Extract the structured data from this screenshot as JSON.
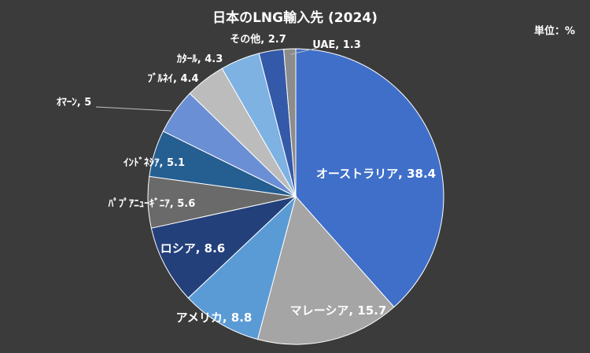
{
  "chart_data": {
    "type": "pie",
    "title": "日本のLNG輸入先 (2024)",
    "unit_label": "単位：%",
    "categories": [
      "オーストラリア",
      "マレーシア",
      "アメリカ",
      "ロシア",
      "ﾊﾟﾌﾟｱﾆｭｰｷﾞﾆｱ",
      "ｲﾝﾄﾞﾈｼｱ",
      "ｵﾏｰﾝ",
      "ﾌﾞﾙﾈｲ",
      "ｶﾀｰﾙ",
      "その他",
      "UAE"
    ],
    "values": [
      38.4,
      15.7,
      8.8,
      8.6,
      5.6,
      5.1,
      5,
      4.4,
      4.3,
      2.7,
      1.3
    ],
    "label_separator": ", ",
    "colors": [
      "#3f6fc9",
      "#a5a5a5",
      "#5b9bd5",
      "#23407a",
      "#6a6a6a",
      "#255e91",
      "#6b8fd4",
      "#bcbcbc",
      "#7db2e2",
      "#3459a8",
      "#8c8c8c"
    ]
  }
}
